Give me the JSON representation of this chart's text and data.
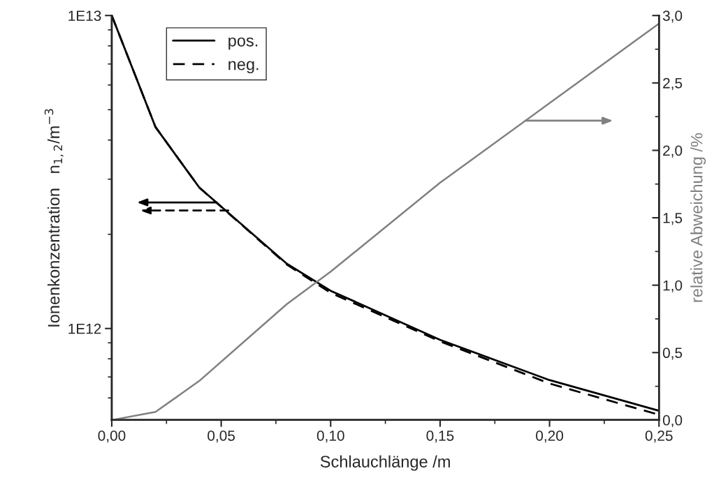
{
  "chart_data": {
    "type": "line",
    "xlabel": "Schlauchlänge /m",
    "ylabel": "Ionenkonzentration   n$_{1,2}$/m$^{−3}$",
    "y2label": "relative Abweichung /%",
    "x": [
      0,
      0.02,
      0.04,
      0.08,
      0.1,
      0.15,
      0.2,
      0.25
    ],
    "series": [
      {
        "name": "pos.",
        "color": "#000000",
        "line_style": "solid",
        "values": [
          10000000000000.0,
          4400000000000.0,
          2820000000000.0,
          1610000000000.0,
          1320000000000.0,
          920000000000.0,
          684000000000.0,
          546000000000.0
        ]
      },
      {
        "name": "neg.",
        "color": "#000000",
        "line_style": "dashed",
        "values": [
          10000000000000.0,
          4400000000000.0,
          2820000000000.0,
          1600000000000.0,
          1300000000000.0,
          910000000000.0,
          667000000000.0,
          530000000000.0
        ]
      },
      {
        "color": "#808080",
        "axis": "y2",
        "line_style": "solid",
        "values": [
          0,
          0.06,
          0.29,
          0.86,
          1.1,
          1.76,
          2.35,
          2.94
        ]
      }
    ],
    "log": "y",
    "xlim": [
      0,
      0.25
    ],
    "xticks": [
      {
        "value": 0,
        "label": "0,00"
      },
      {
        "value": 0.05,
        "label": "0,05"
      },
      {
        "value": 0.1,
        "label": "0,10"
      },
      {
        "value": 0.15,
        "label": "0,15"
      },
      {
        "value": 0.2,
        "label": "0,20"
      },
      {
        "value": 0.25,
        "label": "0,25"
      }
    ],
    "ylim": [
      510000000000.0,
      10000000000000.0
    ],
    "yticks": [
      {
        "value": 1000000000000.0,
        "label": "1E12"
      },
      {
        "value": 10000000000000.0,
        "label": "1E13"
      }
    ],
    "y2lim": [
      0,
      3
    ],
    "y2ticks": [
      {
        "value": 0,
        "label": "0,0"
      },
      {
        "value": 0.5,
        "label": "0,5"
      },
      {
        "value": 1.0,
        "label": "1,0"
      },
      {
        "value": 1.5,
        "label": "1,5"
      },
      {
        "value": 2.0,
        "label": "2,0"
      },
      {
        "value": 2.5,
        "label": "2,5"
      },
      {
        "value": 3.0,
        "label": "3,0"
      }
    ],
    "legend": "top left",
    "grid": false,
    "marker": "none"
  }
}
